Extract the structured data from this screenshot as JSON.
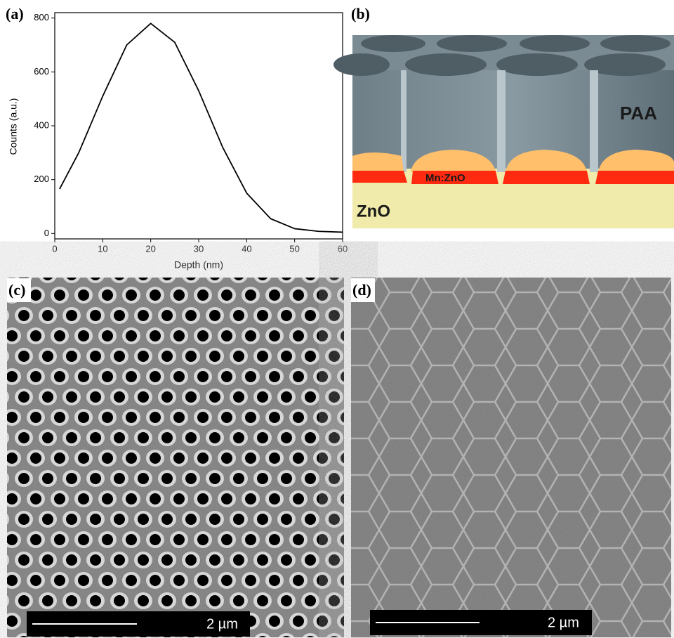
{
  "chart_data": {
    "type": "line",
    "panel_label": "(a)",
    "x_label": "Depth (nm)",
    "y_label": "Counts (a.u.)",
    "x": [
      1,
      5,
      10,
      15,
      20,
      25,
      30,
      35,
      40,
      45,
      50,
      55,
      60
    ],
    "series": [
      {
        "color": "#000000",
        "values": [
          165,
          300,
          510,
          700,
          780,
          710,
          530,
          320,
          150,
          55,
          18,
          8,
          5
        ]
      }
    ],
    "xlim": [
      0,
      60
    ],
    "xticks": [
      0,
      10,
      20,
      30,
      40,
      50,
      60
    ],
    "ylim": [
      -20,
      820
    ],
    "yticks": [
      0,
      200,
      400,
      600,
      800
    ],
    "grid": false
  },
  "panel_b": {
    "label": "(b)",
    "layers": [
      "PAA",
      "Mn:ZnO",
      "ZnO"
    ]
  },
  "panel_c": {
    "label": "(c)",
    "scale_bar": "2 µm"
  },
  "panel_d": {
    "label": "(d)",
    "scale_bar": "2 µm"
  }
}
